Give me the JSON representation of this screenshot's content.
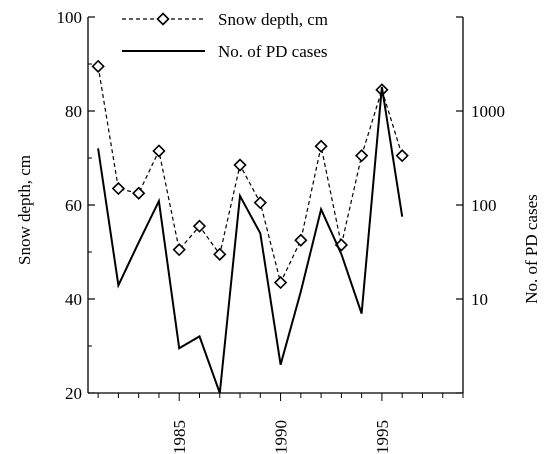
{
  "chart_data": {
    "type": "line",
    "title": "",
    "xlabel": "",
    "x_ticks": [
      "1985",
      "1990",
      "1995"
    ],
    "x_tick_values": [
      1985,
      1990,
      1995
    ],
    "xlim": [
      1980.5,
      1999
    ],
    "left_axis": {
      "label": "Snow depth, cm",
      "ylim": [
        20,
        100
      ],
      "ticks": [
        "20",
        "40",
        "60",
        "80",
        "100"
      ],
      "tick_values": [
        20,
        40,
        60,
        80,
        100
      ]
    },
    "right_axis": {
      "label": "No. of PD cases",
      "scale": "log",
      "ylim": [
        1,
        10000
      ],
      "ticks": [
        "10",
        "100",
        "1000"
      ],
      "tick_values": [
        10,
        100,
        1000
      ]
    },
    "legend": {
      "placement": "top"
    },
    "series": [
      {
        "name": "Snow depth, cm",
        "axis": "left",
        "style": "dashed",
        "marker": "diamond",
        "color": "#000000",
        "x": [
          1981,
          1982,
          1983,
          1984,
          1985,
          1986,
          1987,
          1988,
          1989,
          1990,
          1991,
          1992,
          1993,
          1994,
          1995,
          1996
        ],
        "values": [
          89.5,
          63.5,
          62.5,
          71.5,
          50.5,
          55.5,
          49.5,
          68.5,
          60.5,
          43.5,
          52.5,
          72.5,
          51.5,
          70.5,
          84.5,
          70.5
        ]
      },
      {
        "name": "No. of PD cases",
        "axis": "right",
        "style": "solid",
        "marker": "none",
        "color": "#000000",
        "x": [
          1981,
          1982,
          1983,
          1984,
          1985,
          1986,
          1987,
          1988,
          1989,
          1990,
          1991,
          1992,
          1993,
          1994,
          1995,
          1996
        ],
        "values": [
          400,
          14,
          40,
          110,
          3,
          4,
          1,
          125,
          50,
          2,
          12,
          90,
          30,
          7,
          1800,
          75
        ]
      }
    ]
  }
}
